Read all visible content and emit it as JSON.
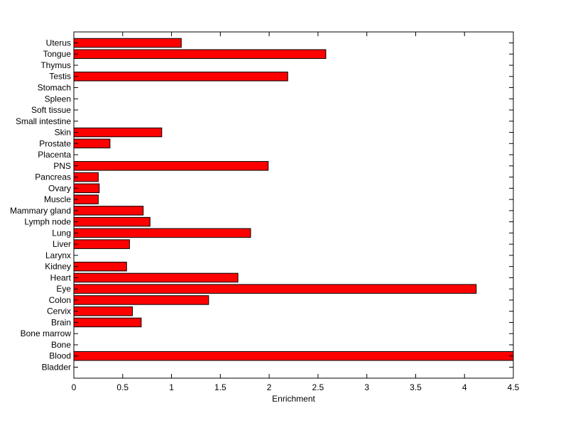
{
  "chart_data": {
    "type": "bar",
    "orientation": "horizontal",
    "title": "",
    "xlabel": "Enrichment",
    "ylabel": "",
    "xlim": [
      0,
      4.5
    ],
    "x_ticks": [
      "0",
      "0.5",
      "1",
      "1.5",
      "2",
      "2.5",
      "3",
      "3.5",
      "4",
      "4.5"
    ],
    "grid": false,
    "legend": "none",
    "bar_color": "#ff0000",
    "bar_edge_color": "#000000",
    "categories": [
      "Bladder",
      "Blood",
      "Bone",
      "Bone marrow",
      "Brain",
      "Cervix",
      "Colon",
      "Eye",
      "Heart",
      "Kidney",
      "Larynx",
      "Liver",
      "Lung",
      "Lymph node",
      "Mammary gland",
      "Muscle",
      "Ovary",
      "Pancreas",
      "PNS",
      "Placenta",
      "Prostate",
      "Skin",
      "Small intestine",
      "Soft tissue",
      "Spleen",
      "Stomach",
      "Testis",
      "Thymus",
      "Tongue",
      "Uterus"
    ],
    "values": [
      0,
      4.5,
      0,
      0,
      0.69,
      0.6,
      1.38,
      4.12,
      1.68,
      0.54,
      0,
      0.57,
      1.81,
      0.78,
      0.71,
      0.25,
      0.26,
      0.25,
      1.99,
      0,
      0.37,
      0.9,
      0,
      0,
      0,
      0,
      2.19,
      0,
      2.58,
      1.1
    ]
  }
}
